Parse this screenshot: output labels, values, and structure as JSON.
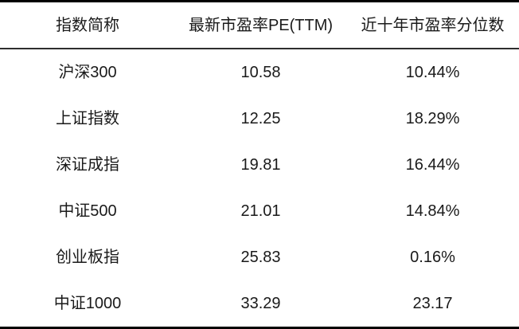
{
  "table": {
    "columns": [
      {
        "label": "指数简称"
      },
      {
        "label": "最新市盈率PE(TTM)"
      },
      {
        "label": "近十年市盈率分位数"
      }
    ],
    "rows": [
      {
        "name": "沪深300",
        "pe": "10.58",
        "percentile": "10.44%"
      },
      {
        "name": "上证指数",
        "pe": "12.25",
        "percentile": "18.29%"
      },
      {
        "name": "深证成指",
        "pe": "19.81",
        "percentile": "16.44%"
      },
      {
        "name": "中证500",
        "pe": "21.01",
        "percentile": "14.84%"
      },
      {
        "name": "创业板指",
        "pe": "25.83",
        "percentile": "0.16%"
      },
      {
        "name": "中证1000",
        "pe": "33.29",
        "percentile": "23.17"
      }
    ],
    "colors": {
      "text": "#1a1a1a",
      "border_heavy": "#000000",
      "border_light": "#2e2e2e",
      "background": "#ffffff"
    }
  },
  "chart_data": {
    "type": "table",
    "title": "",
    "columns": [
      "指数简称",
      "最新市盈率PE(TTM)",
      "近十年市盈率分位数"
    ],
    "rows": [
      [
        "沪深300",
        10.58,
        "10.44%"
      ],
      [
        "上证指数",
        12.25,
        "18.29%"
      ],
      [
        "深证成指",
        19.81,
        "16.44%"
      ],
      [
        "中证500",
        21.01,
        "14.84%"
      ],
      [
        "创业板指",
        25.83,
        "0.16%"
      ],
      [
        "中证1000",
        33.29,
        "23.17"
      ]
    ]
  }
}
